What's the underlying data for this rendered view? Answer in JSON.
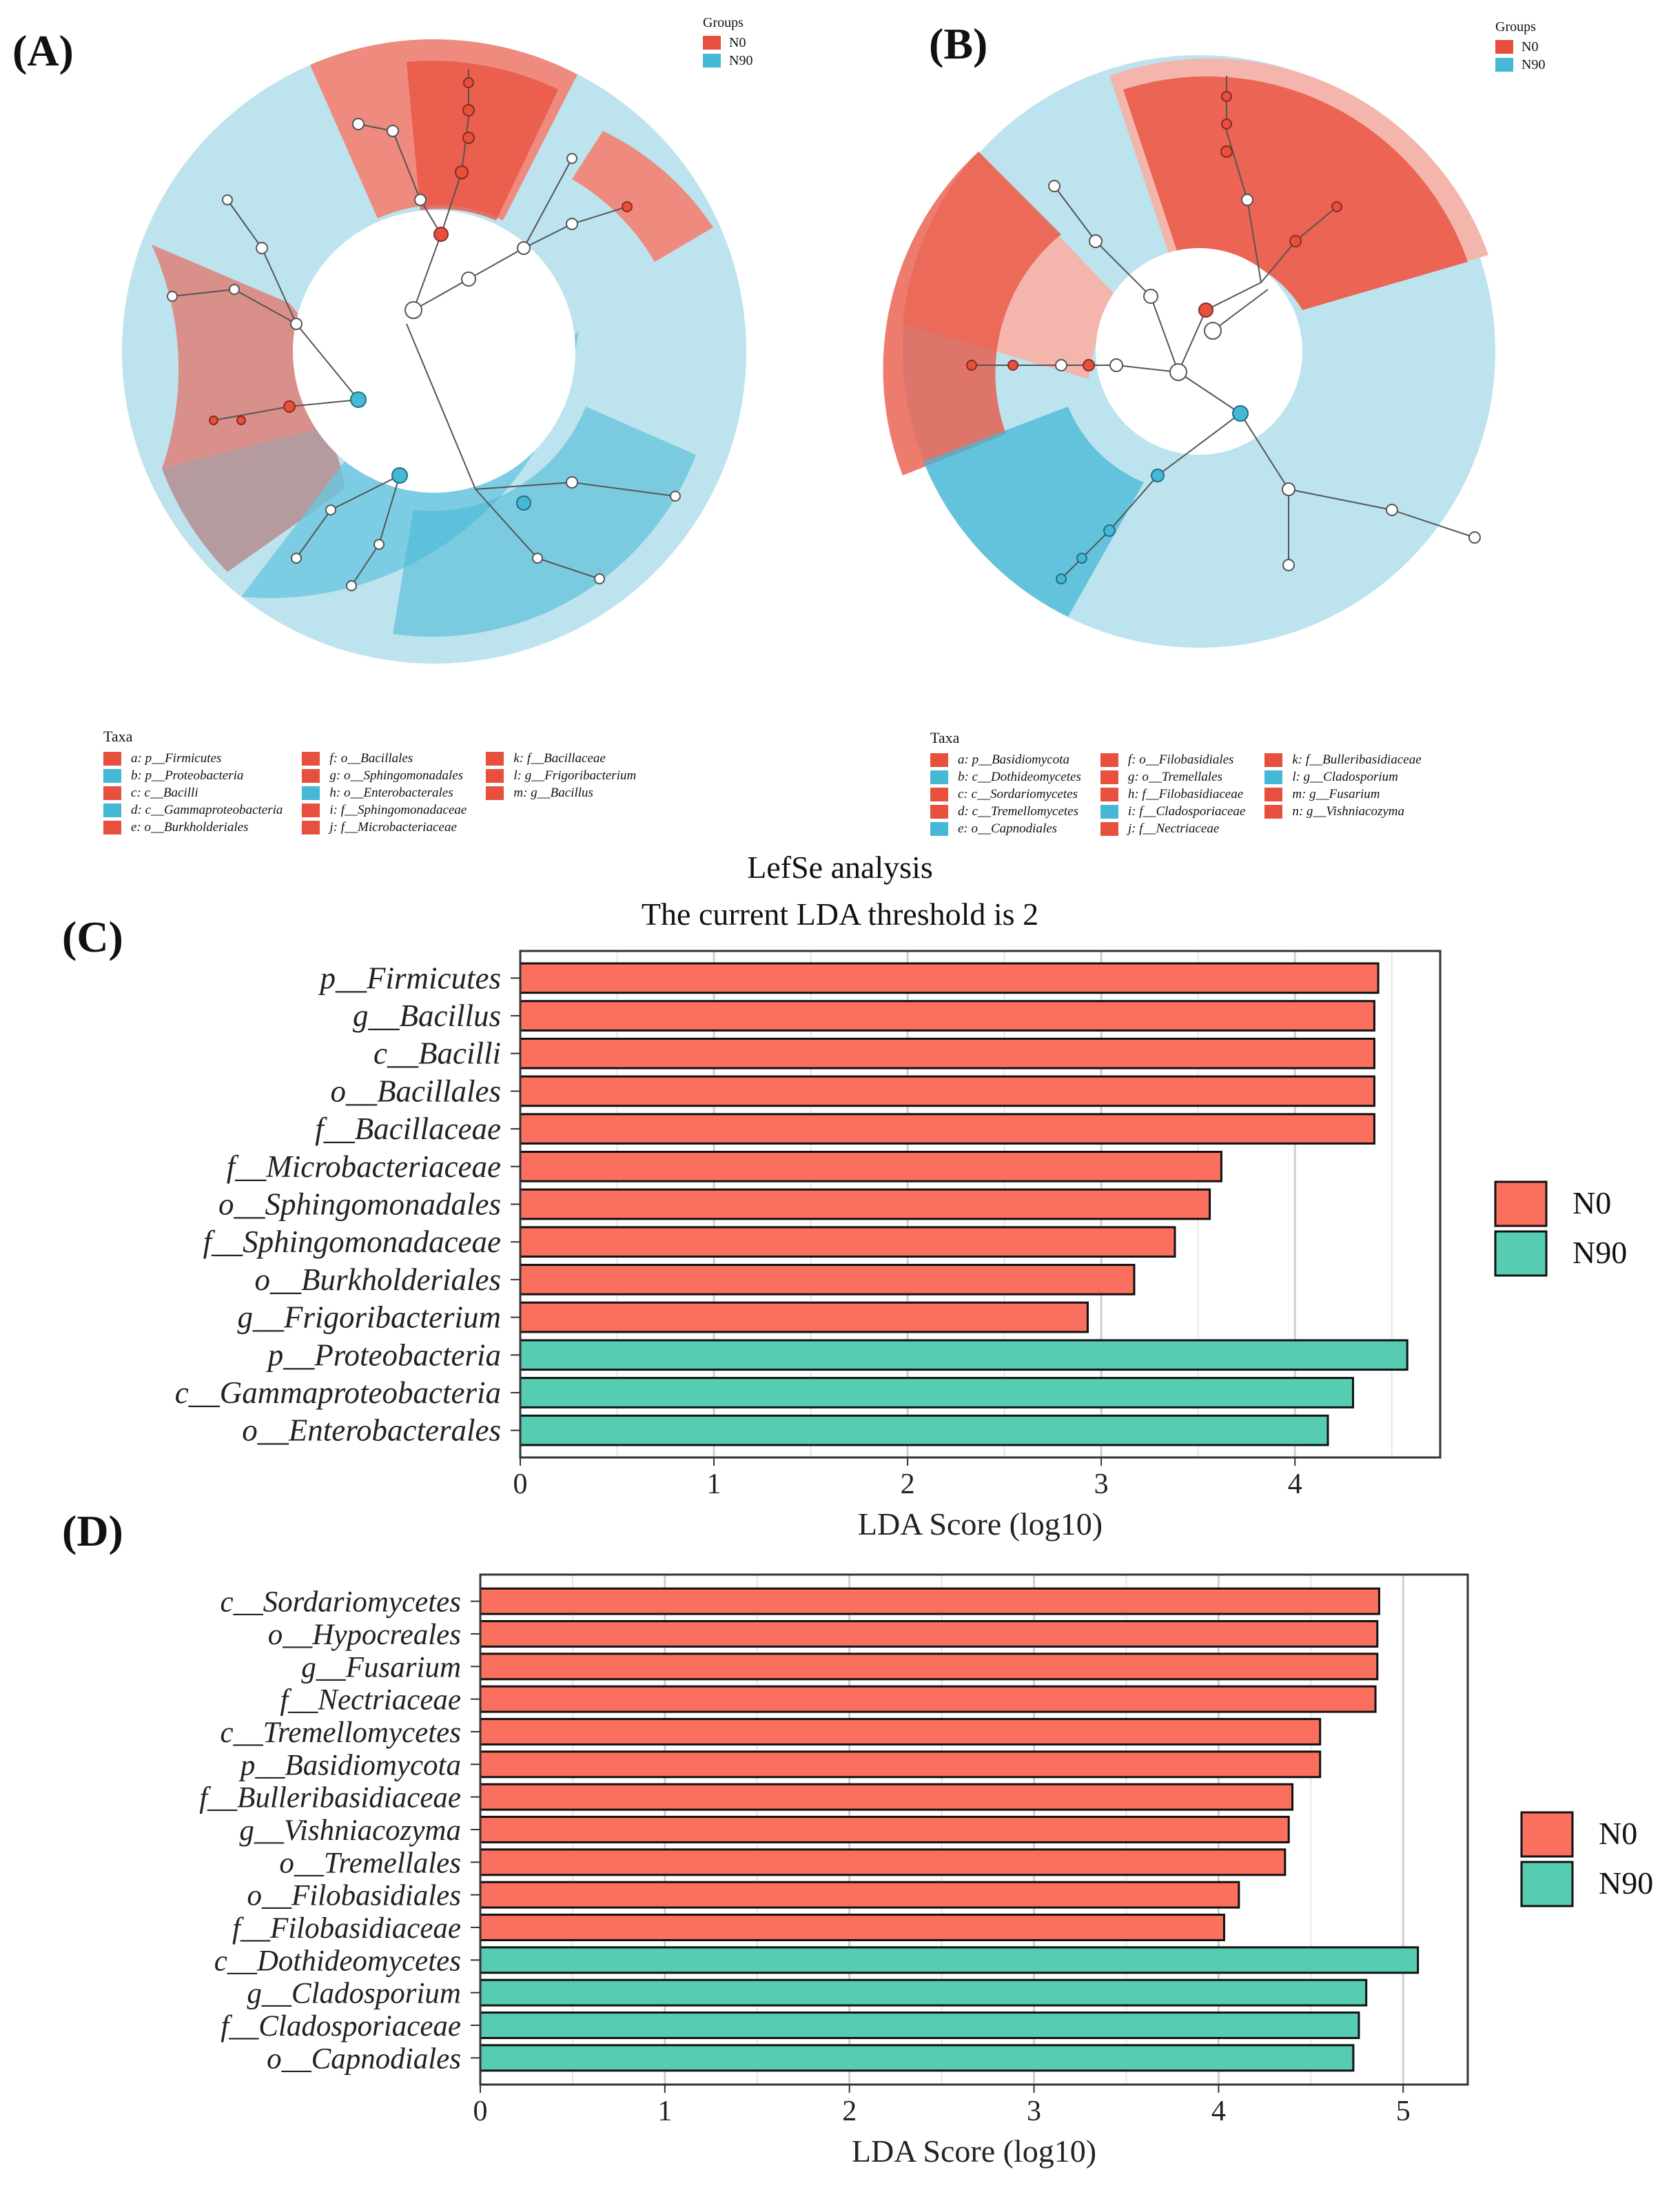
{
  "panels": {
    "A": "(A)",
    "B": "(B)",
    "C": "(C)",
    "D": "(D)"
  },
  "colors": {
    "N0": "#E8503E",
    "N90": "#45B8D6",
    "bar_N0": "#FA6F5E",
    "bar_N90": "#56CDB2",
    "lightRed": "#F4B6AC",
    "lightBlue": "#BDE3EE"
  },
  "cladoA": {
    "groups_title": "Groups",
    "groups": [
      {
        "name": "N0",
        "color": "#E8503E"
      },
      {
        "name": "N90",
        "color": "#45B8D6"
      }
    ],
    "taxa_title": "Taxa",
    "taxa": [
      [
        {
          "text": "a: p__Firmicutes",
          "color": "#E8503E"
        },
        {
          "text": "b: p__Proteobacteria",
          "color": "#45B8D6"
        },
        {
          "text": "c: c__Bacilli",
          "color": "#E8503E"
        },
        {
          "text": "d: c__Gammaproteobacteria",
          "color": "#45B8D6"
        },
        {
          "text": "e: o__Burkholderiales",
          "color": "#E8503E"
        }
      ],
      [
        {
          "text": "f: o__Bacillales",
          "color": "#E8503E"
        },
        {
          "text": "g: o__Sphingomonadales",
          "color": "#E8503E"
        },
        {
          "text": "h: o__Enterobacterales",
          "color": "#45B8D6"
        },
        {
          "text": "i: f__Sphingomonadaceae",
          "color": "#E8503E"
        },
        {
          "text": "j: f__Microbacteriaceae",
          "color": "#E8503E"
        }
      ],
      [
        {
          "text": "k: f__Bacillaceae",
          "color": "#E8503E"
        },
        {
          "text": "l: g__Frigoribacterium",
          "color": "#E8503E"
        },
        {
          "text": "m: g__Bacillus",
          "color": "#E8503E"
        }
      ]
    ]
  },
  "cladoB": {
    "groups_title": "Groups",
    "groups": [
      {
        "name": "N0",
        "color": "#E8503E"
      },
      {
        "name": "N90",
        "color": "#45B8D6"
      }
    ],
    "taxa_title": "Taxa",
    "taxa": [
      [
        {
          "text": "a: p__Basidiomycota",
          "color": "#E8503E"
        },
        {
          "text": "b: c__Dothideomycetes",
          "color": "#45B8D6"
        },
        {
          "text": "c: c__Sordariomycetes",
          "color": "#E8503E"
        },
        {
          "text": "d: c__Tremellomycetes",
          "color": "#E8503E"
        },
        {
          "text": "e: o__Capnodiales",
          "color": "#45B8D6"
        }
      ],
      [
        {
          "text": "f: o__Filobasidiales",
          "color": "#E8503E"
        },
        {
          "text": "g: o__Tremellales",
          "color": "#E8503E"
        },
        {
          "text": "h: f__Filobasidiaceae",
          "color": "#E8503E"
        },
        {
          "text": "i: f__Cladosporiaceae",
          "color": "#45B8D6"
        },
        {
          "text": "j: f__Nectriaceae",
          "color": "#E8503E"
        }
      ],
      [
        {
          "text": "k: f__Bulleribasidiaceae",
          "color": "#E8503E"
        },
        {
          "text": "l: g__Cladosporium",
          "color": "#45B8D6"
        },
        {
          "text": "m: g__Fusarium",
          "color": "#E8503E"
        },
        {
          "text": "n: g__Vishniacozyma",
          "color": "#E8503E"
        }
      ]
    ]
  },
  "lefse": {
    "title": "LefSe analysis",
    "subtitle": "The current LDA threshold is 2"
  },
  "chart_data": [
    {
      "type": "bar",
      "orientation": "horizontal",
      "panel": "C",
      "xlabel": "LDA Score (log10)",
      "xlim": [
        0,
        4.75
      ],
      "xticks": [
        0,
        1,
        2,
        3,
        4
      ],
      "legend": [
        {
          "name": "N0",
          "color": "#FA6F5E"
        },
        {
          "name": "N90",
          "color": "#56CDB2"
        }
      ],
      "legend_position": "right",
      "bars": [
        {
          "label": "p__Firmicutes",
          "value": 4.43,
          "group": "N0"
        },
        {
          "label": "g__Bacillus",
          "value": 4.41,
          "group": "N0"
        },
        {
          "label": "c__Bacilli",
          "value": 4.41,
          "group": "N0"
        },
        {
          "label": "o__Bacillales",
          "value": 4.41,
          "group": "N0"
        },
        {
          "label": "f__Bacillaceae",
          "value": 4.41,
          "group": "N0"
        },
        {
          "label": "f__Microbacteriaceae",
          "value": 3.62,
          "group": "N0"
        },
        {
          "label": "o__Sphingomonadales",
          "value": 3.56,
          "group": "N0"
        },
        {
          "label": "f__Sphingomonadaceae",
          "value": 3.38,
          "group": "N0"
        },
        {
          "label": "o__Burkholderiales",
          "value": 3.17,
          "group": "N0"
        },
        {
          "label": "g__Frigoribacterium",
          "value": 2.93,
          "group": "N0"
        },
        {
          "label": "p__Proteobacteria",
          "value": 4.58,
          "group": "N90"
        },
        {
          "label": "c__Gammaproteobacteria",
          "value": 4.3,
          "group": "N90"
        },
        {
          "label": "o__Enterobacterales",
          "value": 4.17,
          "group": "N90"
        }
      ]
    },
    {
      "type": "bar",
      "orientation": "horizontal",
      "panel": "D",
      "xlabel": "LDA Score (log10)",
      "xlim": [
        0,
        5.35
      ],
      "xticks": [
        0,
        1,
        2,
        3,
        4,
        5
      ],
      "legend": [
        {
          "name": "N0",
          "color": "#FA6F5E"
        },
        {
          "name": "N90",
          "color": "#56CDB2"
        }
      ],
      "legend_position": "right",
      "bars": [
        {
          "label": "c__Sordariomycetes",
          "value": 4.87,
          "group": "N0"
        },
        {
          "label": "o__Hypocreales",
          "value": 4.86,
          "group": "N0"
        },
        {
          "label": "g__Fusarium",
          "value": 4.86,
          "group": "N0"
        },
        {
          "label": "f__Nectriaceae",
          "value": 4.85,
          "group": "N0"
        },
        {
          "label": "c__Tremellomycetes",
          "value": 4.55,
          "group": "N0"
        },
        {
          "label": "p__Basidiomycota",
          "value": 4.55,
          "group": "N0"
        },
        {
          "label": "f__Bulleribasidiaceae",
          "value": 4.4,
          "group": "N0"
        },
        {
          "label": "g__Vishniacozyma",
          "value": 4.38,
          "group": "N0"
        },
        {
          "label": "o__Tremellales",
          "value": 4.36,
          "group": "N0"
        },
        {
          "label": "o__Filobasidiales",
          "value": 4.11,
          "group": "N0"
        },
        {
          "label": "f__Filobasidiaceae",
          "value": 4.03,
          "group": "N0"
        },
        {
          "label": "c__Dothideomycetes",
          "value": 5.08,
          "group": "N90"
        },
        {
          "label": "g__Cladosporium",
          "value": 4.8,
          "group": "N90"
        },
        {
          "label": "f__Cladosporiaceae",
          "value": 4.76,
          "group": "N90"
        },
        {
          "label": "o__Capnodiales",
          "value": 4.73,
          "group": "N90"
        }
      ]
    }
  ]
}
